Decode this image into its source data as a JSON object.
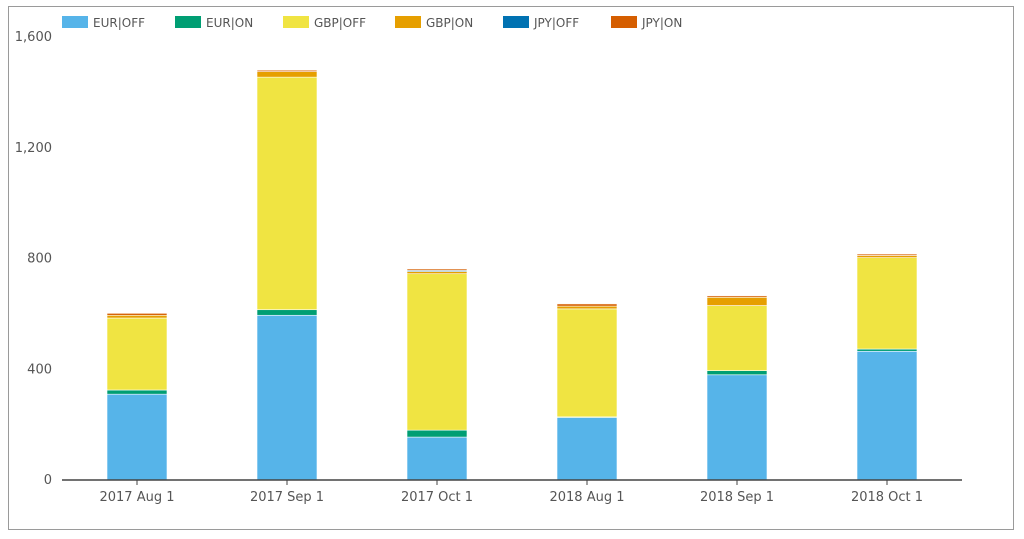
{
  "chart_data": {
    "type": "bar",
    "stacked": true,
    "categories": [
      "2017 Aug 1",
      "2017 Sep 1",
      "2017 Oct 1",
      "2018 Aug 1",
      "2018 Sep 1",
      "2018 Oct 1"
    ],
    "series": [
      {
        "name": "EUR|OFF",
        "color": "#56b4e9",
        "values": [
          310,
          595,
          155,
          225,
          380,
          465
        ]
      },
      {
        "name": "EUR|ON",
        "color": "#009e73",
        "values": [
          15,
          20,
          25,
          3,
          15,
          8
        ]
      },
      {
        "name": "GBP|OFF",
        "color": "#f0e442",
        "values": [
          260,
          840,
          565,
          390,
          235,
          330
        ]
      },
      {
        "name": "GBP|ON",
        "color": "#e69f00",
        "values": [
          10,
          20,
          8,
          10,
          30,
          8
        ]
      },
      {
        "name": "JPY|OFF",
        "color": "#0072b2",
        "values": [
          0,
          0,
          4,
          0,
          0,
          0
        ]
      },
      {
        "name": "JPY|ON",
        "color": "#d55e00",
        "values": [
          7,
          5,
          5,
          8,
          5,
          5
        ]
      }
    ],
    "yticks": [
      "0",
      "400",
      "800",
      "1,200",
      "1,600"
    ],
    "ylim": [
      0,
      1600
    ],
    "legend_position": "top-left",
    "grid": false,
    "title": "",
    "xlabel": "",
    "ylabel": ""
  }
}
